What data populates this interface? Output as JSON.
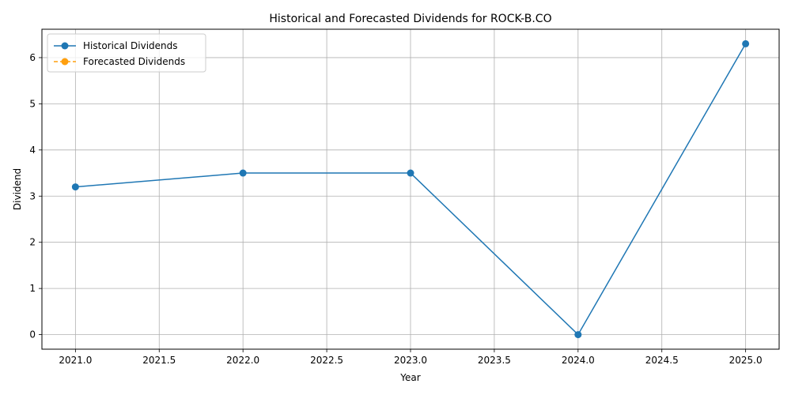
{
  "chart_data": {
    "type": "line",
    "title": "Historical and Forecasted Dividends for ROCK-B.CO",
    "xlabel": "Year",
    "ylabel": "Dividend",
    "xlim": [
      2020.8,
      2025.2
    ],
    "ylim": [
      -0.315,
      6.615
    ],
    "xticks": [
      2021.0,
      2021.5,
      2022.0,
      2022.5,
      2023.0,
      2023.5,
      2024.0,
      2024.5,
      2025.0
    ],
    "xtick_labels": [
      "2021.0",
      "2021.5",
      "2022.0",
      "2022.5",
      "2023.0",
      "2023.5",
      "2024.0",
      "2024.5",
      "2025.0"
    ],
    "yticks": [
      0,
      1,
      2,
      3,
      4,
      5,
      6
    ],
    "ytick_labels": [
      "0",
      "1",
      "2",
      "3",
      "4",
      "5",
      "6"
    ],
    "grid": true,
    "legend_position": "upper-left",
    "series": [
      {
        "name": "Historical Dividends",
        "color": "#1f77b4",
        "line_style": "solid",
        "marker": "circle",
        "x": [
          2021,
          2022,
          2023,
          2024,
          2025
        ],
        "y": [
          3.2,
          3.5,
          3.5,
          0.0,
          6.3
        ]
      },
      {
        "name": "Forecasted Dividends",
        "color": "#ff9f0e",
        "line_style": "dashed",
        "marker": "circle",
        "x": [],
        "y": []
      }
    ]
  }
}
